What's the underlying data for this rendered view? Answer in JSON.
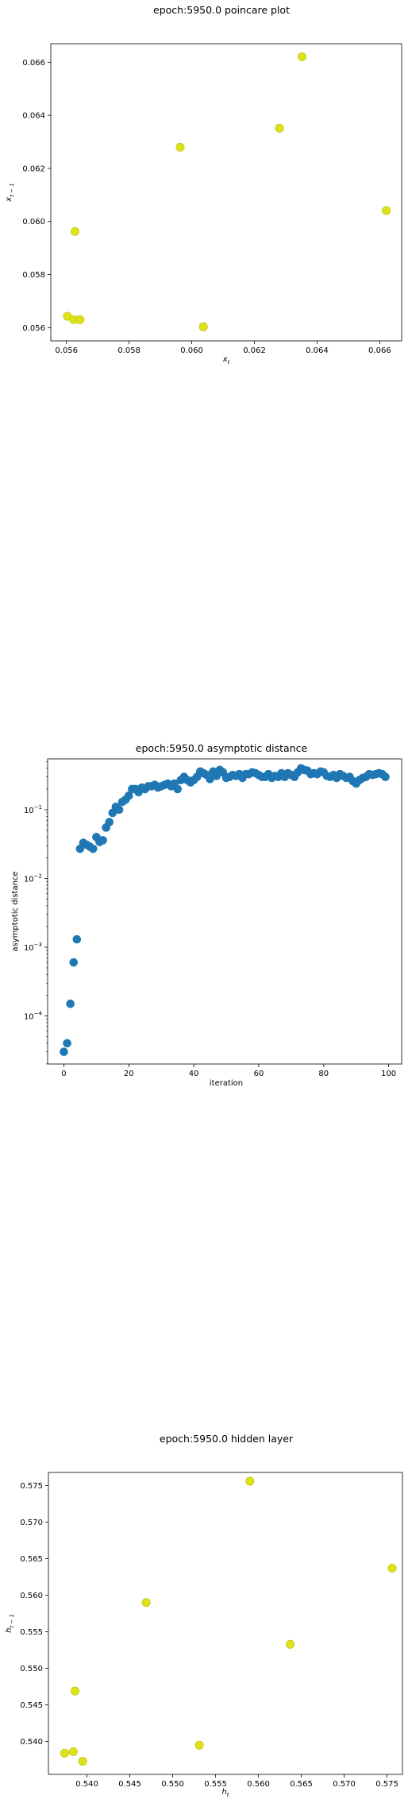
{
  "chart_data": [
    {
      "type": "scatter",
      "title": "epoch:5950.0 poincare plot",
      "xlabel_base": "x",
      "xlabel_sub": "t",
      "ylabel_base": "x",
      "ylabel_sub": "t − 1",
      "xlim": [
        0.0555,
        0.0667
      ],
      "ylim": [
        0.0555,
        0.0667
      ],
      "xticks": [
        "0.056",
        "0.058",
        "0.060",
        "0.062",
        "0.064",
        "0.066"
      ],
      "xtick_values": [
        0.056,
        0.058,
        0.06,
        0.062,
        0.064,
        0.066
      ],
      "yticks": [
        "0.056",
        "0.058",
        "0.060",
        "0.062",
        "0.064",
        "0.066"
      ],
      "ytick_values": [
        0.056,
        0.058,
        0.06,
        0.062,
        0.064,
        0.066
      ],
      "color": "#dde318",
      "points": [
        {
          "x": 0.05603,
          "y": 0.05643
        },
        {
          "x": 0.05623,
          "y": 0.0563
        },
        {
          "x": 0.05643,
          "y": 0.0563
        },
        {
          "x": 0.05627,
          "y": 0.05962
        },
        {
          "x": 0.05963,
          "y": 0.0628
        },
        {
          "x": 0.06037,
          "y": 0.05603
        },
        {
          "x": 0.0628,
          "y": 0.06352
        },
        {
          "x": 0.06352,
          "y": 0.06621
        },
        {
          "x": 0.06621,
          "y": 0.06041
        }
      ]
    },
    {
      "type": "scatter",
      "title": "epoch:5950.0 asymptotic distance",
      "xlabel": "iteration",
      "ylabel": "asymptotic distance",
      "yscale": "log",
      "xlim": [
        -5,
        104
      ],
      "ylim_log10": [
        -4.7,
        -0.26
      ],
      "xticks": [
        "0",
        "20",
        "40",
        "60",
        "80",
        "100"
      ],
      "xtick_values": [
        0,
        20,
        40,
        60,
        80,
        100
      ],
      "yticks": [
        {
          "base": "10",
          "exp": "−4",
          "value": -4
        },
        {
          "base": "10",
          "exp": "−3",
          "value": -3
        },
        {
          "base": "10",
          "exp": "−2",
          "value": -2
        },
        {
          "base": "10",
          "exp": "−1",
          "value": -1
        }
      ],
      "color": "#1f77b4",
      "x": [
        0,
        1,
        2,
        3,
        4,
        5,
        6,
        7,
        8,
        9,
        10,
        11,
        12,
        13,
        14,
        15,
        16,
        17,
        18,
        19,
        20,
        21,
        22,
        23,
        24,
        25,
        26,
        27,
        28,
        29,
        30,
        31,
        32,
        33,
        34,
        35,
        36,
        37,
        38,
        39,
        40,
        41,
        42,
        43,
        44,
        45,
        46,
        47,
        48,
        49,
        50,
        51,
        52,
        53,
        54,
        55,
        56,
        57,
        58,
        59,
        60,
        61,
        62,
        63,
        64,
        65,
        66,
        67,
        68,
        69,
        70,
        71,
        72,
        73,
        74,
        75,
        76,
        77,
        78,
        79,
        80,
        81,
        82,
        83,
        84,
        85,
        86,
        87,
        88,
        89,
        90,
        91,
        92,
        93,
        94,
        95,
        96,
        97,
        98,
        99
      ],
      "y": [
        3e-05,
        4e-05,
        0.00015,
        0.0006,
        0.0013,
        0.027,
        0.033,
        0.031,
        0.029,
        0.027,
        0.04,
        0.034,
        0.036,
        0.055,
        0.066,
        0.09,
        0.11,
        0.1,
        0.13,
        0.14,
        0.16,
        0.2,
        0.2,
        0.18,
        0.21,
        0.2,
        0.22,
        0.22,
        0.23,
        0.21,
        0.22,
        0.23,
        0.24,
        0.22,
        0.24,
        0.2,
        0.27,
        0.3,
        0.27,
        0.25,
        0.27,
        0.3,
        0.36,
        0.34,
        0.32,
        0.28,
        0.36,
        0.31,
        0.38,
        0.35,
        0.29,
        0.3,
        0.32,
        0.31,
        0.33,
        0.29,
        0.33,
        0.33,
        0.35,
        0.34,
        0.32,
        0.3,
        0.3,
        0.33,
        0.29,
        0.31,
        0.3,
        0.34,
        0.3,
        0.34,
        0.32,
        0.3,
        0.35,
        0.4,
        0.38,
        0.37,
        0.33,
        0.34,
        0.33,
        0.36,
        0.35,
        0.31,
        0.3,
        0.32,
        0.29,
        0.33,
        0.31,
        0.29,
        0.3,
        0.26,
        0.24,
        0.27,
        0.29,
        0.3,
        0.33,
        0.32,
        0.33,
        0.34,
        0.33,
        0.3
      ]
    },
    {
      "type": "scatter",
      "title": "epoch:5950.0 hidden layer",
      "xlabel_base": "h",
      "xlabel_sub": "t",
      "ylabel_base": "h",
      "ylabel_sub": "t − 1",
      "xlim": [
        0.5355,
        0.5768
      ],
      "ylim": [
        0.5355,
        0.5768
      ],
      "xticks": [
        "0.540",
        "0.545",
        "0.550",
        "0.555",
        "0.560",
        "0.565",
        "0.570",
        "0.575"
      ],
      "xtick_values": [
        0.54,
        0.545,
        0.55,
        0.555,
        0.56,
        0.565,
        0.57,
        0.575
      ],
      "yticks": [
        "0.540",
        "0.545",
        "0.550",
        "0.555",
        "0.560",
        "0.565",
        "0.570",
        "0.575"
      ],
      "ytick_values": [
        0.54,
        0.545,
        0.55,
        0.555,
        0.56,
        0.565,
        0.57,
        0.575
      ],
      "color": "#dde318",
      "points": [
        {
          "x": 0.5374,
          "y": 0.5384
        },
        {
          "x": 0.5384,
          "y": 0.5386
        },
        {
          "x": 0.5386,
          "y": 0.5469
        },
        {
          "x": 0.5395,
          "y": 0.5373
        },
        {
          "x": 0.5469,
          "y": 0.559
        },
        {
          "x": 0.5531,
          "y": 0.5395
        },
        {
          "x": 0.559,
          "y": 0.5756
        },
        {
          "x": 0.5637,
          "y": 0.5533
        },
        {
          "x": 0.5756,
          "y": 0.5637
        }
      ]
    }
  ]
}
